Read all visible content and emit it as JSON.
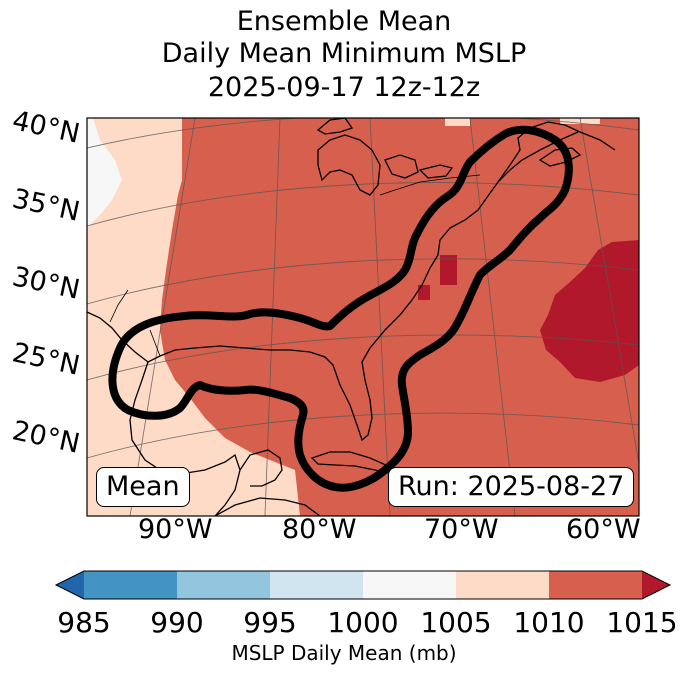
{
  "title": {
    "line1": "Ensemble Mean",
    "line2": "Daily Mean Minimum MSLP",
    "line3": "2025-09-17 12z-12z"
  },
  "latitude_labels": [
    "40°N",
    "35°N",
    "30°N",
    "25°N",
    "20°N"
  ],
  "longitude_labels": [
    "90°W",
    "80°W",
    "70°W",
    "60°W"
  ],
  "mean_box": "Mean",
  "run_box": "Run: 2025-08-27",
  "colorbar": {
    "ticks": [
      "985",
      "990",
      "995",
      "1000",
      "1005",
      "1010",
      "1015"
    ],
    "label": "MSLP Daily Mean (mb)",
    "colors": [
      "#2166ac",
      "#4393c3",
      "#92c5de",
      "#d1e5f0",
      "#f7f7f7",
      "#fddbc7",
      "#d6604d",
      "#b2182b"
    ]
  },
  "map_colors": {
    "band_1000_1005": "#f7f7f7",
    "band_1005_1010": "#fddbc7",
    "band_1010_1015": "#d6604d",
    "band_above_1015": "#b2182b",
    "contour": "#000000"
  }
}
